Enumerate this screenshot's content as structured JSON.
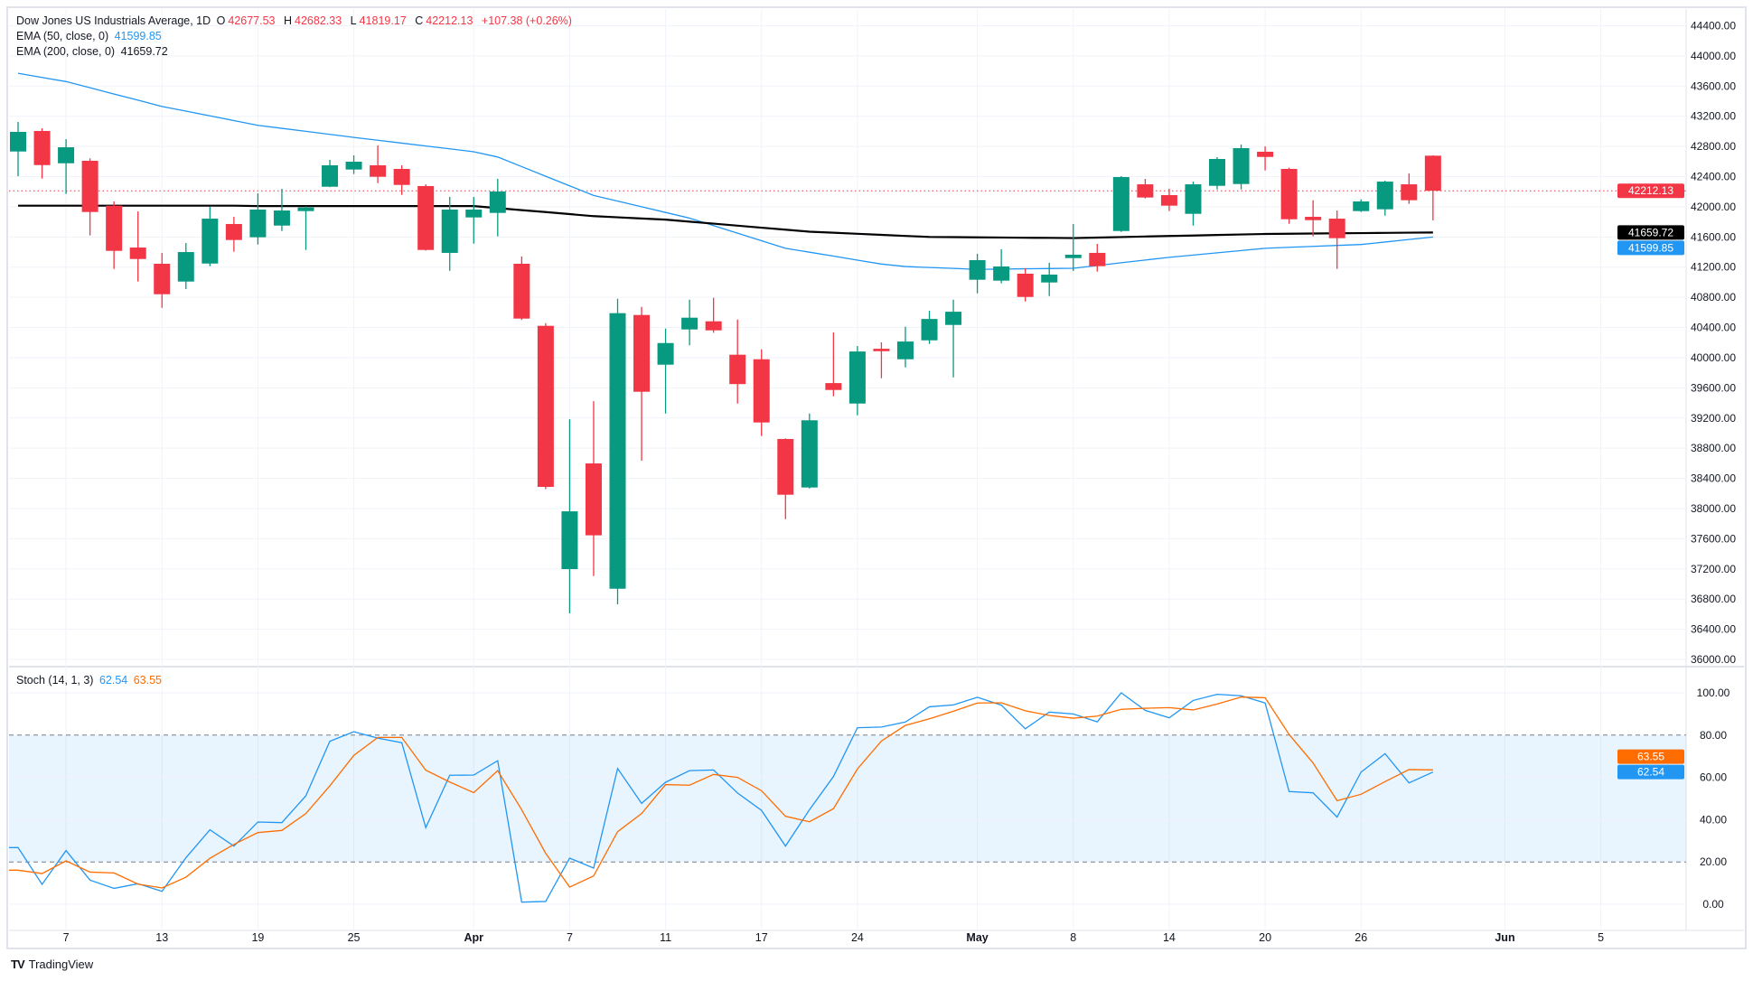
{
  "legend": {
    "symbol": "Dow Jones US Industrials Average, 1D",
    "open_label": "O",
    "open": "42677.53",
    "high_label": "H",
    "high": "42682.33",
    "low_label": "L",
    "low": "41819.17",
    "close_label": "C",
    "close": "42212.13",
    "change": "+107.38 (+0.26%)",
    "ema50_label": "EMA (50, close, 0)",
    "ema50_value": "41599.85",
    "ema200_label": "EMA (200, close, 0)",
    "ema200_value": "41659.72",
    "stoch_label": "Stoch (14, 1, 3)",
    "stoch_k_value": "62.54",
    "stoch_d_value": "63.55"
  },
  "brand": "TradingView",
  "colors": {
    "up": "#089981",
    "down": "#f23645",
    "ema50": "#2196f3",
    "ema200": "#000000",
    "stoch_k": "#2196f3",
    "stoch_d": "#ff6d00",
    "band": "#2196f3"
  },
  "chart_data": [
    {
      "type": "candlestick",
      "ylim": [
        36000,
        44400
      ],
      "y_ticks": [
        "44400.00",
        "44000.00",
        "43600.00",
        "43200.00",
        "42800.00",
        "42400.00",
        "42000.00",
        "41600.00",
        "41200.00",
        "40800.00",
        "40400.00",
        "40000.00",
        "39600.00",
        "39200.00",
        "38800.00",
        "38400.00",
        "38000.00",
        "37600.00",
        "37200.00",
        "36800.00",
        "36400.00",
        "36000.00"
      ],
      "x_ticks": [
        {
          "label": "7",
          "bar": 2
        },
        {
          "label": "13",
          "bar": 6
        },
        {
          "label": "19",
          "bar": 10
        },
        {
          "label": "25",
          "bar": 14
        },
        {
          "label": "Apr",
          "bar": 19,
          "bold": true
        },
        {
          "label": "7",
          "bar": 23
        },
        {
          "label": "11",
          "bar": 27
        },
        {
          "label": "17",
          "bar": 31
        },
        {
          "label": "24",
          "bar": 35
        },
        {
          "label": "May",
          "bar": 40,
          "bold": true
        },
        {
          "label": "8",
          "bar": 44
        },
        {
          "label": "14",
          "bar": 48
        },
        {
          "label": "20",
          "bar": 52
        },
        {
          "label": "26",
          "bar": 56
        },
        {
          "label": "Jun",
          "bar": 62,
          "bold": true
        },
        {
          "label": "5",
          "bar": 66
        }
      ],
      "ohlc": [
        [
          42733,
          43125,
          42406,
          42993
        ],
        [
          43005,
          43041,
          42374,
          42553
        ],
        [
          42577,
          42897,
          42170,
          42789
        ],
        [
          42610,
          42642,
          41620,
          41931
        ],
        [
          42015,
          42071,
          41177,
          41416
        ],
        [
          41460,
          41939,
          41009,
          41308
        ],
        [
          41245,
          41389,
          40661,
          40841
        ],
        [
          41009,
          41520,
          40909,
          41400
        ],
        [
          41248,
          41999,
          41213,
          41843
        ],
        [
          41772,
          41867,
          41404,
          41560
        ],
        [
          41596,
          42179,
          41500,
          41963
        ],
        [
          41751,
          42239,
          41679,
          41951
        ],
        [
          41943,
          42005,
          41428,
          41991
        ],
        [
          42266,
          42622,
          42260,
          42550
        ],
        [
          42494,
          42682,
          42434,
          42598
        ],
        [
          42550,
          42814,
          42314,
          42398
        ],
        [
          42502,
          42550,
          42158,
          42290
        ],
        [
          42275,
          42298,
          41420,
          41428
        ],
        [
          41389,
          42131,
          41152,
          41963
        ],
        [
          41859,
          42131,
          41512,
          41963
        ],
        [
          41919,
          42370,
          41608,
          42203
        ],
        [
          41245,
          41341,
          40500,
          40518
        ],
        [
          40422,
          40458,
          38257,
          38287
        ],
        [
          37197,
          39184,
          36610,
          37963
        ],
        [
          38598,
          39423,
          37105,
          37645
        ],
        [
          36937,
          40781,
          36730,
          40590
        ],
        [
          40566,
          40673,
          38634,
          39548
        ],
        [
          39907,
          40386,
          39260,
          40194
        ],
        [
          40374,
          40769,
          40164,
          40530
        ],
        [
          40482,
          40793,
          40330,
          40362
        ],
        [
          40039,
          40506,
          39392,
          39650
        ],
        [
          39979,
          40110,
          38961,
          39141
        ],
        [
          38922,
          38930,
          37860,
          38183
        ],
        [
          38279,
          39260,
          38265,
          39170
        ],
        [
          39663,
          40334,
          39488,
          39572
        ],
        [
          39392,
          40154,
          39236,
          40082
        ],
        [
          40118,
          40203,
          39727,
          40086
        ],
        [
          39979,
          40410,
          39872,
          40214
        ],
        [
          40230,
          40621,
          40182,
          40513
        ],
        [
          40434,
          40769,
          39739,
          40609
        ],
        [
          41033,
          41377,
          40853,
          41293
        ],
        [
          41021,
          41437,
          40985,
          41209
        ],
        [
          41113,
          41185,
          40745,
          40805
        ],
        [
          40997,
          41257,
          40817,
          41101
        ],
        [
          41320,
          41772,
          41149,
          41365
        ],
        [
          41389,
          41508,
          41141,
          41213
        ],
        [
          41679,
          42406,
          41667,
          42394
        ],
        [
          42298,
          42370,
          42110,
          42123
        ],
        [
          42155,
          42239,
          41943,
          42015
        ],
        [
          41907,
          42334,
          41751,
          42298
        ],
        [
          42278,
          42658,
          42230,
          42634
        ],
        [
          42302,
          42826,
          42230,
          42778
        ],
        [
          42730,
          42802,
          42482,
          42661
        ],
        [
          42502,
          42518,
          41775,
          41835
        ],
        [
          41867,
          42087,
          41608,
          41823
        ],
        [
          41843,
          41951,
          41177,
          41584
        ],
        [
          41943,
          42099,
          41931,
          42071
        ],
        [
          41967,
          42346,
          41883,
          42334
        ],
        [
          42298,
          42442,
          42039,
          42087
        ],
        [
          42677.53,
          42682.33,
          41819.17,
          42212.13
        ]
      ],
      "series": [
        {
          "name": "EMA (50, close, 0)",
          "values": [
            43770,
            43715,
            43660,
            43578,
            43495,
            43413,
            43330,
            43268,
            43205,
            43143,
            43080,
            43040,
            43000,
            42960,
            42920,
            42882,
            42844,
            42806,
            42768,
            42730,
            42660,
            42533,
            42405,
            42278,
            42150,
            42075,
            42000,
            41925,
            41850,
            41750,
            41650,
            41550,
            41450,
            41398,
            41346,
            41293,
            41241,
            41208,
            41195,
            41183,
            41170,
            41174,
            41178,
            41181,
            41185,
            41221,
            41258,
            41294,
            41330,
            41360,
            41390,
            41420,
            41450,
            41463,
            41475,
            41488,
            41500,
            41533,
            41567,
            41599.85
          ]
        },
        {
          "name": "EMA (200, close, 0)",
          "values": [
            42015,
            42015,
            42015,
            42015,
            42015,
            42015,
            42015,
            42015,
            42015,
            42015,
            42010,
            42010,
            42010,
            42010,
            42010,
            42010,
            42010,
            42010,
            42010,
            42010,
            41983,
            41956,
            41930,
            41903,
            41876,
            41861,
            41845,
            41830,
            41803,
            41777,
            41750,
            41723,
            41697,
            41670,
            41656,
            41642,
            41628,
            41614,
            41600,
            41598,
            41595,
            41593,
            41590,
            41588,
            41585,
            41592,
            41599,
            41606,
            41613,
            41619,
            41626,
            41633,
            41640,
            41643,
            41646,
            41649,
            41651,
            41654,
            41657,
            41659.72
          ]
        }
      ],
      "last_price": "42212.13",
      "price_labels": [
        {
          "text": "42212.13",
          "value": 42212.13,
          "color": "#f23645"
        },
        {
          "text": "41659.72",
          "value": 41659.72,
          "color": "#000000"
        },
        {
          "text": "41599.85",
          "value": 41599.85,
          "color": "#2196f3"
        }
      ]
    },
    {
      "type": "line",
      "title": "Stoch (14, 1, 3)",
      "ylim": [
        0,
        100
      ],
      "y_ticks": [
        "100.00",
        "80.00",
        "60.00",
        "40.00",
        "20.00",
        "0.00"
      ],
      "band": [
        20,
        80
      ],
      "series": [
        {
          "name": "%K",
          "values": [
            26.8,
            9.4,
            25.4,
            11.4,
            7.5,
            9.7,
            6.1,
            22,
            35.2,
            27.5,
            38.9,
            38.6,
            51.3,
            77.1,
            81.6,
            78.6,
            76.4,
            36.2,
            61,
            61.1,
            67.9,
            1.0,
            1.3,
            21.8,
            17.1,
            64.2,
            47.7,
            57.7,
            63.2,
            63.5,
            52.6,
            44.4,
            27.5,
            44.7,
            60.4,
            83.5,
            83.8,
            86.2,
            93.4,
            94.3,
            97.9,
            94.2,
            83,
            90.9,
            90,
            86.3,
            100,
            91.7,
            88.2,
            96.4,
            99.3,
            98.6,
            95.2,
            53.3,
            52.7,
            41.2,
            62.5,
            71.2,
            57.4,
            62.54
          ]
        },
        {
          "name": "%D",
          "values": [
            16.1,
            14.5,
            20.5,
            15.2,
            14.8,
            9.5,
            7.7,
            12.8,
            21.7,
            28.3,
            33.9,
            34.9,
            42.9,
            56,
            70.4,
            78.9,
            78.9,
            63.4,
            57.8,
            52.8,
            63.2,
            44.7,
            24.1,
            8.1,
            13.4,
            34.3,
            42.9,
            56.6,
            56.3,
            61.4,
            60,
            53.7,
            41.6,
            39,
            45.2,
            64,
            77.2,
            84.6,
            87.7,
            91.3,
            95.2,
            95.3,
            91.5,
            89.3,
            88,
            89,
            92.2,
            92.7,
            93,
            91.9,
            94.7,
            98,
            97.7,
            80.3,
            66.8,
            49,
            52,
            58,
            63.7,
            63.55
          ]
        }
      ],
      "value_labels": [
        {
          "text": "63.55",
          "value": 63.55,
          "color": "#ff6d00"
        },
        {
          "text": "62.54",
          "value": 62.54,
          "color": "#2196f3"
        }
      ]
    }
  ]
}
